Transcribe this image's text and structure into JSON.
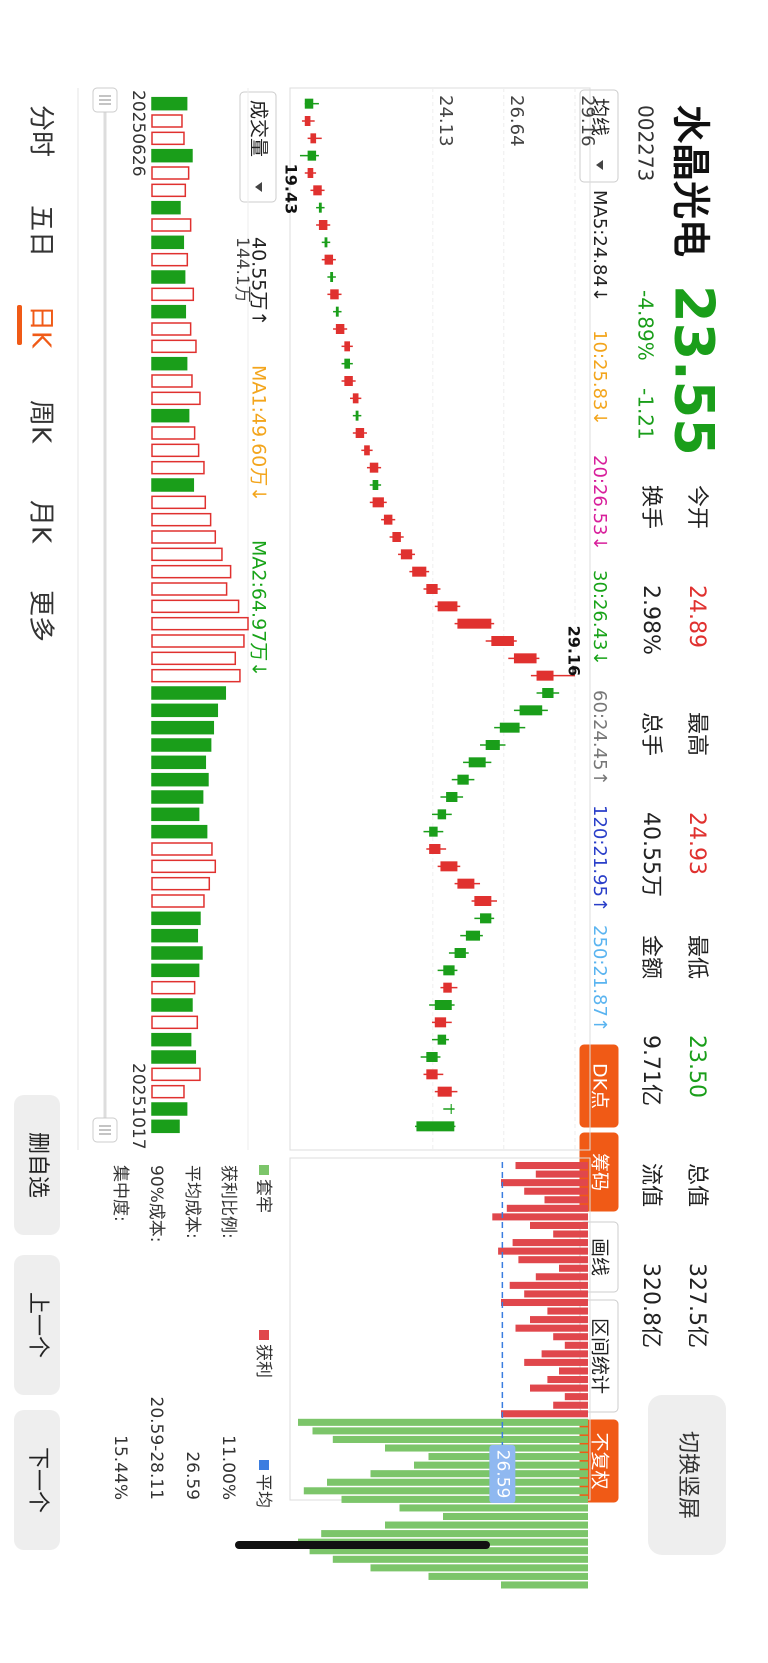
{
  "header": {
    "name": "水晶光电",
    "code": "002273",
    "price": "23.55",
    "change_pct": "-4.89%",
    "change": "-1.21",
    "stats": [
      {
        "label": "今开",
        "value": "24.89"
      },
      {
        "label": "换手",
        "value": "2.98%"
      },
      {
        "label": "最高",
        "value": "24.93"
      },
      {
        "label": "总手",
        "value": "40.55万"
      },
      {
        "label": "最低",
        "value": "23.50"
      },
      {
        "label": "金额",
        "value": "9.71亿"
      },
      {
        "label": "总值",
        "value": "327.5亿"
      },
      {
        "label": "流值",
        "value": "320.8亿"
      }
    ],
    "switch_button": "切换竖屏"
  },
  "toolbar": {
    "ma_selector": "均线",
    "ma_labels": [
      "MA5:24.84↓",
      "10:25.83↓",
      "20:26.53↓",
      "30:26.43↓",
      "60:24.45↑",
      "120:21.95↑",
      "250:21.87↑"
    ],
    "buttons": [
      "DK点",
      "筹码",
      "画线",
      "区间统计",
      "不复权"
    ]
  },
  "chart_data": {
    "type": "candlestick",
    "ylim": [
      19.36,
      29.62
    ],
    "yticks": [
      29.16,
      26.64,
      24.13
    ],
    "candles": [
      [
        19.9,
        20.1,
        19.6,
        19.6
      ],
      [
        19.6,
        19.95,
        19.5,
        19.8
      ],
      [
        19.8,
        20.2,
        19.7,
        20.0
      ],
      [
        20.0,
        20.1,
        19.43,
        19.7
      ],
      [
        19.7,
        20.0,
        19.6,
        19.9
      ],
      [
        19.9,
        20.3,
        19.8,
        20.2
      ],
      [
        20.2,
        20.3,
        20.0,
        20.1
      ],
      [
        20.1,
        20.5,
        20.0,
        20.4
      ],
      [
        20.4,
        20.5,
        20.2,
        20.3
      ],
      [
        20.3,
        20.7,
        20.2,
        20.6
      ],
      [
        20.6,
        20.7,
        20.4,
        20.5
      ],
      [
        20.5,
        20.9,
        20.4,
        20.8
      ],
      [
        20.8,
        20.9,
        20.6,
        20.7
      ],
      [
        20.7,
        21.1,
        20.6,
        21.0
      ],
      [
        21.0,
        21.3,
        20.9,
        21.2
      ],
      [
        21.2,
        21.3,
        20.9,
        21.0
      ],
      [
        21.0,
        21.4,
        20.9,
        21.3
      ],
      [
        21.3,
        21.6,
        21.2,
        21.5
      ],
      [
        21.5,
        21.6,
        21.3,
        21.4
      ],
      [
        21.4,
        21.8,
        21.3,
        21.7
      ],
      [
        21.7,
        22.0,
        21.6,
        21.9
      ],
      [
        21.9,
        22.3,
        21.8,
        22.2
      ],
      [
        22.2,
        22.3,
        21.9,
        22.0
      ],
      [
        22.0,
        22.5,
        21.9,
        22.4
      ],
      [
        22.4,
        22.8,
        22.3,
        22.7
      ],
      [
        22.7,
        23.1,
        22.6,
        23.0
      ],
      [
        23.0,
        23.5,
        22.9,
        23.4
      ],
      [
        23.4,
        24.0,
        23.3,
        23.9
      ],
      [
        23.9,
        24.4,
        23.8,
        24.3
      ],
      [
        24.3,
        25.1,
        24.2,
        25.0
      ],
      [
        25.0,
        26.3,
        24.9,
        26.2
      ],
      [
        26.2,
        27.1,
        26.0,
        27.0
      ],
      [
        27.0,
        27.9,
        26.8,
        27.8
      ],
      [
        27.8,
        29.16,
        27.6,
        28.4
      ],
      [
        28.4,
        28.6,
        27.8,
        28.0
      ],
      [
        28.0,
        28.2,
        27.0,
        27.2
      ],
      [
        27.2,
        27.4,
        26.3,
        26.5
      ],
      [
        26.5,
        26.7,
        25.8,
        26.0
      ],
      [
        26.0,
        26.2,
        25.2,
        25.4
      ],
      [
        25.4,
        25.6,
        24.8,
        25.0
      ],
      [
        25.0,
        25.2,
        24.4,
        24.6
      ],
      [
        24.6,
        24.8,
        24.1,
        24.3
      ],
      [
        24.3,
        24.5,
        23.8,
        24.0
      ],
      [
        24.0,
        24.6,
        23.9,
        24.4
      ],
      [
        24.4,
        25.1,
        24.3,
        25.0
      ],
      [
        25.0,
        25.8,
        24.9,
        25.6
      ],
      [
        25.6,
        26.4,
        25.5,
        26.2
      ],
      [
        26.2,
        26.3,
        25.6,
        25.8
      ],
      [
        25.8,
        25.9,
        25.1,
        25.3
      ],
      [
        25.3,
        25.4,
        24.7,
        24.9
      ],
      [
        24.9,
        25.0,
        24.3,
        24.5
      ],
      [
        24.5,
        25.0,
        24.4,
        24.8
      ],
      [
        24.8,
        24.9,
        24.0,
        24.2
      ],
      [
        24.2,
        24.8,
        24.1,
        24.6
      ],
      [
        24.6,
        24.7,
        24.1,
        24.3
      ],
      [
        24.3,
        24.4,
        23.7,
        23.9
      ],
      [
        23.9,
        24.5,
        23.8,
        24.3
      ],
      [
        24.3,
        25.0,
        24.2,
        24.8
      ],
      [
        24.8,
        24.9,
        24.5,
        24.76
      ],
      [
        24.89,
        24.93,
        23.5,
        23.55
      ]
    ],
    "max_label": "29.16",
    "min_label": "19.43",
    "volume": {
      "title": "成交量",
      "current": "40.55万↑",
      "ma_labels": [
        "MA1:49.60万↓",
        "MA2:64.97万↓"
      ],
      "ylim": [
        0,
        144.1
      ],
      "yticks": [
        {
          "value": 144.1,
          "label": "144.1万"
        }
      ],
      "values": [
        52,
        45,
        48,
        60,
        55,
        50,
        42,
        58,
        47,
        53,
        49,
        62,
        50,
        58,
        66,
        52,
        60,
        72,
        55,
        64,
        70,
        78,
        62,
        80,
        88,
        95,
        105,
        118,
        112,
        130,
        144.1,
        138,
        125,
        132,
        110,
        98,
        92,
        88,
        80,
        84,
        76,
        70,
        82,
        90,
        95,
        86,
        78,
        72,
        68,
        75,
        70,
        64,
        60,
        68,
        58,
        65,
        72,
        48,
        52,
        40.55
      ]
    },
    "start_date": "20250626",
    "end_date": "20251017"
  },
  "chips": {
    "series": [
      {
        "name": "获利",
        "color": "#e0474c",
        "values": [
          25,
          18,
          30,
          22,
          15,
          28,
          33,
          20,
          12,
          26,
          31,
          24,
          10,
          18,
          27,
          22,
          30,
          14,
          20,
          25,
          12,
          8,
          16,
          22,
          10,
          14,
          20,
          8,
          12,
          30
        ]
      },
      {
        "name": "套牢",
        "color": "#7cc56a",
        "values": [
          100,
          95,
          88,
          70,
          55,
          60,
          75,
          90,
          98,
          85,
          65,
          50,
          70,
          92,
          100,
          96,
          88,
          75,
          55,
          30
        ]
      }
    ],
    "avg_legend": "平均",
    "avg_cost": 26.59,
    "rows": [
      {
        "label": "获利比例:",
        "value": "11.00%"
      },
      {
        "label": "平均成本:",
        "value": "26.59"
      },
      {
        "label": "90%成本:",
        "value": "20.59-28.11"
      },
      {
        "label": "集中度:",
        "value": "15.44%"
      }
    ]
  },
  "nav": {
    "tabs": [
      "分时",
      "五日",
      "日K",
      "周K",
      "月K",
      "更多"
    ],
    "actions": [
      "删自选",
      "上一个",
      "下一个"
    ]
  }
}
